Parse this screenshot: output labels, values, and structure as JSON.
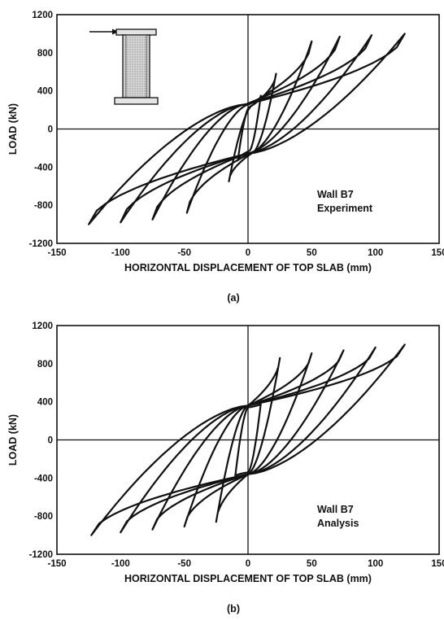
{
  "chart_data": [
    {
      "type": "line",
      "panel_label": "(a)",
      "xlabel": "HORIZONTAL DISPLACEMENT OF TOP SLAB (mm)",
      "ylabel": "LOAD (kN)",
      "xlim": [
        -150,
        150
      ],
      "ylim": [
        -1200,
        1200
      ],
      "x_ticks": [
        -150,
        -100,
        -50,
        0,
        50,
        100,
        150
      ],
      "y_ticks": [
        -1200,
        -800,
        -400,
        0,
        400,
        800,
        1200
      ],
      "x_tick_labels": [
        "-150",
        "-100",
        "-50",
        "0",
        "50",
        "100",
        "150"
      ],
      "y_tick_labels": [
        "-1200",
        "-800",
        "-400",
        "0",
        "400",
        "800",
        "1200"
      ],
      "annotation": [
        "Wall B7",
        "Experiment"
      ],
      "inset": "wall-specimen-sketch",
      "loops": [
        {
          "dmax": 10,
          "dmin": -8,
          "pmax": 350,
          "pmin": -330,
          "pint": 230,
          "dint": 5
        },
        {
          "dmax": 22,
          "dmin": -15,
          "pmax": 580,
          "pmin": -550,
          "pint": 250,
          "dint": 10
        },
        {
          "dmax": 50,
          "dmin": -48,
          "pmax": 920,
          "pmin": -880,
          "pint": 260,
          "dint": 25
        },
        {
          "dmax": 72,
          "dmin": -75,
          "pmax": 970,
          "pmin": -950,
          "pint": 260,
          "dint": 40
        },
        {
          "dmax": 97,
          "dmin": -100,
          "pmax": 985,
          "pmin": -980,
          "pint": 260,
          "dint": 50
        },
        {
          "dmax": 123,
          "dmin": -125,
          "pmax": 1000,
          "pmin": -1000,
          "pint": 260,
          "dint": 65
        }
      ]
    },
    {
      "type": "line",
      "panel_label": "(b)",
      "xlabel": "HORIZONTAL DISPLACEMENT OF TOP SLAB (mm)",
      "ylabel": "LOAD (kN)",
      "xlim": [
        -150,
        150
      ],
      "ylim": [
        -1200,
        1200
      ],
      "x_ticks": [
        -150,
        -100,
        -50,
        0,
        50,
        100,
        150
      ],
      "y_ticks": [
        -1200,
        -800,
        -400,
        0,
        400,
        800,
        1200
      ],
      "x_tick_labels": [
        "-150",
        "-100",
        "-50",
        "0",
        "50",
        "100",
        "150"
      ],
      "y_tick_labels": [
        "-1200",
        "-800",
        "-400",
        "0",
        "400",
        "800",
        "1200"
      ],
      "annotation": [
        "Wall B7",
        "Analysis"
      ],
      "loops": [
        {
          "dmax": 10,
          "dmin": -10,
          "pmax": 380,
          "pmin": -380,
          "pint": 340,
          "dint": 8
        },
        {
          "dmax": 25,
          "dmin": -25,
          "pmax": 860,
          "pmin": -860,
          "pint": 360,
          "dint": 18
        },
        {
          "dmax": 50,
          "dmin": -50,
          "pmax": 910,
          "pmin": -910,
          "pint": 360,
          "dint": 35
        },
        {
          "dmax": 75,
          "dmin": -75,
          "pmax": 940,
          "pmin": -940,
          "pint": 360,
          "dint": 50
        },
        {
          "dmax": 100,
          "dmin": -100,
          "pmax": 970,
          "pmin": -970,
          "pint": 360,
          "dint": 65
        },
        {
          "dmax": 123,
          "dmin": -123,
          "pmax": 1000,
          "pmin": -1000,
          "pint": 360,
          "dint": 80
        }
      ]
    }
  ]
}
